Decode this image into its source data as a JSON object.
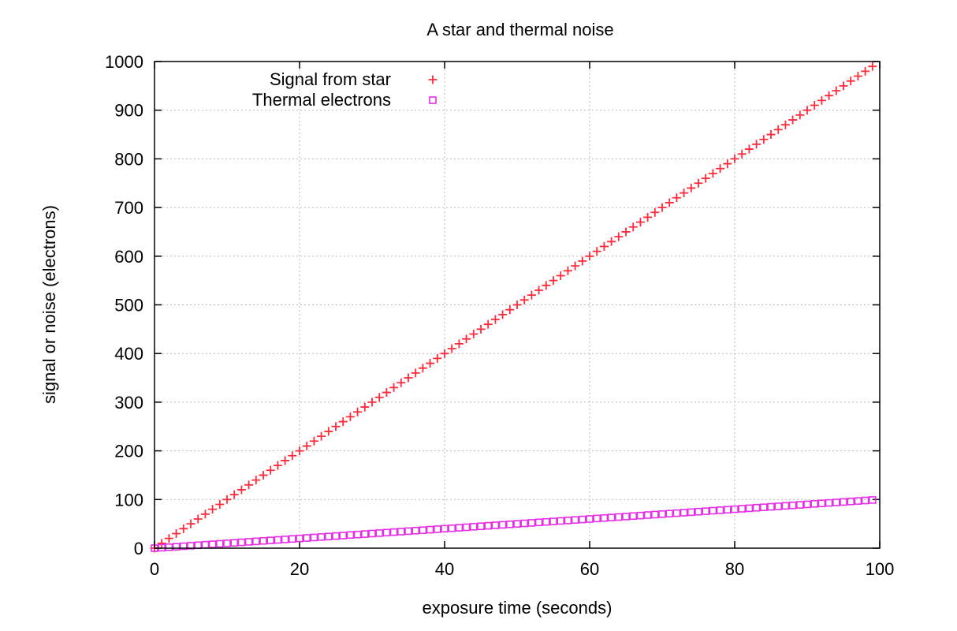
{
  "chart_data": {
    "type": "scatter",
    "title": "A star and thermal noise",
    "xlabel": "exposure time (seconds)",
    "ylabel": "signal or noise (electrons)",
    "xlim": [
      0,
      100
    ],
    "ylim": [
      0,
      1000
    ],
    "xticks": [
      0,
      20,
      40,
      60,
      80,
      100
    ],
    "yticks": [
      0,
      100,
      200,
      300,
      400,
      500,
      600,
      700,
      800,
      900,
      1000
    ],
    "x_range": {
      "start": 0,
      "end": 99,
      "step": 1
    },
    "grid": true,
    "legend_position": "top-left",
    "series": [
      {
        "name": "Signal from star",
        "marker": "plus",
        "color": "#ff2a3a",
        "slope": 10,
        "intercept": 0
      },
      {
        "name": "Thermal electrons",
        "marker": "square",
        "color": "#e62ee6",
        "slope": 1,
        "intercept": 0
      }
    ]
  }
}
